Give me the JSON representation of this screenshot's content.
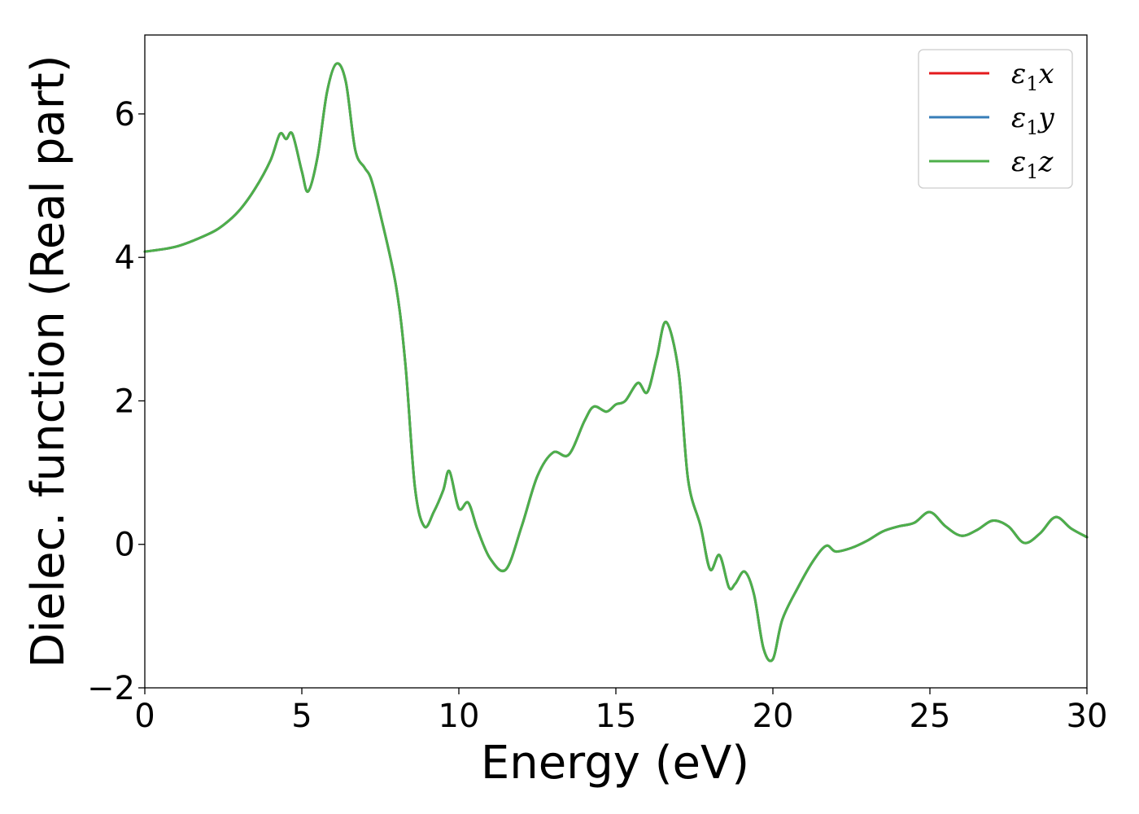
{
  "chart_data": {
    "type": "line",
    "title": "",
    "xlabel": "Energy (eV)",
    "ylabel": "Dielec. function (Real part)",
    "xlim": [
      0,
      30
    ],
    "ylim": [
      -2,
      7.1
    ],
    "x_ticks": [
      0,
      5,
      10,
      15,
      20,
      25,
      30
    ],
    "y_ticks": [
      -2,
      0,
      2,
      4,
      6
    ],
    "x_tick_labels": [
      "0",
      "5",
      "10",
      "15",
      "20",
      "25",
      "30"
    ],
    "y_tick_labels": [
      "−2",
      "0",
      "2",
      "4",
      "6"
    ],
    "grid": false,
    "legend_position": "top-right",
    "series": [
      {
        "name": "ε₁x",
        "legend_base": "ε",
        "legend_sub": "1",
        "legend_var": "x",
        "color": "#e41a1c",
        "x": [
          0,
          1,
          2,
          2.5,
          3,
          3.5,
          4,
          4.3,
          4.5,
          4.7,
          5.0,
          5.2,
          5.5,
          5.8,
          6.1,
          6.4,
          6.7,
          7.0,
          7.2,
          7.5,
          8.0,
          8.3,
          8.6,
          8.9,
          9.2,
          9.5,
          9.7,
          10.0,
          10.3,
          10.6,
          11.0,
          11.5,
          12.0,
          12.5,
          13.0,
          13.5,
          14.0,
          14.3,
          14.7,
          15.0,
          15.3,
          15.7,
          16.0,
          16.3,
          16.6,
          17.0,
          17.3,
          17.7,
          18.0,
          18.3,
          18.6,
          18.8,
          19.1,
          19.4,
          19.7,
          20.0,
          20.3,
          20.8,
          21.3,
          21.7,
          22.0,
          22.5,
          23.0,
          23.5,
          24.0,
          24.5,
          25.0,
          25.5,
          26.0,
          26.5,
          27.0,
          27.5,
          28.0,
          28.5,
          29.0,
          29.5,
          30.0
        ],
        "y": [
          4.08,
          4.15,
          4.32,
          4.45,
          4.65,
          4.95,
          5.35,
          5.72,
          5.65,
          5.72,
          5.2,
          4.92,
          5.4,
          6.3,
          6.7,
          6.45,
          5.5,
          5.25,
          5.1,
          4.6,
          3.6,
          2.5,
          0.8,
          0.25,
          0.45,
          0.75,
          1.02,
          0.5,
          0.58,
          0.2,
          -0.2,
          -0.35,
          0.25,
          0.95,
          1.28,
          1.25,
          1.72,
          1.92,
          1.85,
          1.95,
          2.0,
          2.25,
          2.12,
          2.6,
          3.1,
          2.4,
          0.9,
          0.25,
          -0.35,
          -0.15,
          -0.6,
          -0.55,
          -0.38,
          -0.7,
          -1.45,
          -1.6,
          -1.05,
          -0.6,
          -0.22,
          -0.02,
          -0.1,
          -0.05,
          0.05,
          0.18,
          0.25,
          0.3,
          0.45,
          0.25,
          0.12,
          0.2,
          0.33,
          0.25,
          0.02,
          0.15,
          0.38,
          0.22,
          0.1
        ]
      },
      {
        "name": "ε₁y",
        "legend_base": "ε",
        "legend_sub": "1",
        "legend_var": "y",
        "color": "#377eb8",
        "x": [
          0,
          1,
          2,
          2.5,
          3,
          3.5,
          4,
          4.3,
          4.5,
          4.7,
          5.0,
          5.2,
          5.5,
          5.8,
          6.1,
          6.4,
          6.7,
          7.0,
          7.2,
          7.5,
          8.0,
          8.3,
          8.6,
          8.9,
          9.2,
          9.5,
          9.7,
          10.0,
          10.3,
          10.6,
          11.0,
          11.5,
          12.0,
          12.5,
          13.0,
          13.5,
          14.0,
          14.3,
          14.7,
          15.0,
          15.3,
          15.7,
          16.0,
          16.3,
          16.6,
          17.0,
          17.3,
          17.7,
          18.0,
          18.3,
          18.6,
          18.8,
          19.1,
          19.4,
          19.7,
          20.0,
          20.3,
          20.8,
          21.3,
          21.7,
          22.0,
          22.5,
          23.0,
          23.5,
          24.0,
          24.5,
          25.0,
          25.5,
          26.0,
          26.5,
          27.0,
          27.5,
          28.0,
          28.5,
          29.0,
          29.5,
          30.0
        ],
        "y": [
          4.08,
          4.15,
          4.32,
          4.45,
          4.65,
          4.95,
          5.35,
          5.72,
          5.65,
          5.72,
          5.2,
          4.92,
          5.4,
          6.3,
          6.7,
          6.45,
          5.5,
          5.25,
          5.1,
          4.6,
          3.6,
          2.5,
          0.8,
          0.25,
          0.45,
          0.75,
          1.02,
          0.5,
          0.58,
          0.2,
          -0.2,
          -0.35,
          0.25,
          0.95,
          1.28,
          1.25,
          1.72,
          1.92,
          1.85,
          1.95,
          2.0,
          2.25,
          2.12,
          2.6,
          3.1,
          2.4,
          0.9,
          0.25,
          -0.35,
          -0.15,
          -0.6,
          -0.55,
          -0.38,
          -0.7,
          -1.45,
          -1.6,
          -1.05,
          -0.6,
          -0.22,
          -0.02,
          -0.1,
          -0.05,
          0.05,
          0.18,
          0.25,
          0.3,
          0.45,
          0.25,
          0.12,
          0.2,
          0.33,
          0.25,
          0.02,
          0.15,
          0.38,
          0.22,
          0.1
        ]
      },
      {
        "name": "ε₁z",
        "legend_base": "ε",
        "legend_sub": "1",
        "legend_var": "z",
        "color": "#4daf4a",
        "x": [
          0,
          1,
          2,
          2.5,
          3,
          3.5,
          4,
          4.3,
          4.5,
          4.7,
          5.0,
          5.2,
          5.5,
          5.8,
          6.1,
          6.4,
          6.7,
          7.0,
          7.2,
          7.5,
          8.0,
          8.3,
          8.6,
          8.9,
          9.2,
          9.5,
          9.7,
          10.0,
          10.3,
          10.6,
          11.0,
          11.5,
          12.0,
          12.5,
          13.0,
          13.5,
          14.0,
          14.3,
          14.7,
          15.0,
          15.3,
          15.7,
          16.0,
          16.3,
          16.6,
          17.0,
          17.3,
          17.7,
          18.0,
          18.3,
          18.6,
          18.8,
          19.1,
          19.4,
          19.7,
          20.0,
          20.3,
          20.8,
          21.3,
          21.7,
          22.0,
          22.5,
          23.0,
          23.5,
          24.0,
          24.5,
          25.0,
          25.5,
          26.0,
          26.5,
          27.0,
          27.5,
          28.0,
          28.5,
          29.0,
          29.5,
          30.0
        ],
        "y": [
          4.08,
          4.15,
          4.32,
          4.45,
          4.65,
          4.95,
          5.35,
          5.72,
          5.65,
          5.72,
          5.2,
          4.92,
          5.4,
          6.3,
          6.7,
          6.45,
          5.5,
          5.25,
          5.1,
          4.6,
          3.6,
          2.5,
          0.8,
          0.25,
          0.45,
          0.75,
          1.02,
          0.5,
          0.58,
          0.2,
          -0.2,
          -0.35,
          0.25,
          0.95,
          1.28,
          1.25,
          1.72,
          1.92,
          1.85,
          1.95,
          2.0,
          2.25,
          2.12,
          2.6,
          3.1,
          2.4,
          0.9,
          0.25,
          -0.35,
          -0.15,
          -0.6,
          -0.55,
          -0.38,
          -0.7,
          -1.45,
          -1.6,
          -1.05,
          -0.6,
          -0.22,
          -0.02,
          -0.1,
          -0.05,
          0.05,
          0.18,
          0.25,
          0.3,
          0.45,
          0.25,
          0.12,
          0.2,
          0.33,
          0.25,
          0.02,
          0.15,
          0.38,
          0.22,
          0.1
        ]
      }
    ]
  }
}
